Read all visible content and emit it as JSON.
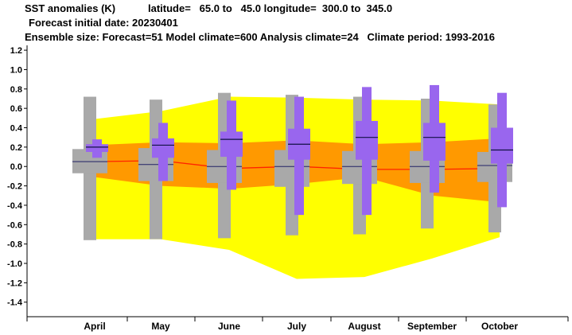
{
  "header": {
    "title": "SST anomalies (K)",
    "region": "latitude=   65.0 to   45.0 longitude=  300.0 to  345.0",
    "initial_date": "Forecast initial date: 20230401",
    "ensemble": "Ensemble size: Forecast=51 Model climate=600 Analysis climate=24   Climate period: 1993-2016"
  },
  "chart_data": {
    "type": "box",
    "categories": [
      "April",
      "May",
      "June",
      "July",
      "August",
      "September",
      "October"
    ],
    "ylim": [
      -1.55,
      1.25
    ],
    "yticks": [
      1.2,
      1.0,
      0.8,
      0.6,
      0.4,
      0.2,
      0.0,
      -0.2,
      -0.4,
      -0.6,
      -0.8,
      -1.0,
      -1.2,
      -1.4
    ],
    "ytick_labels": [
      "1.2",
      "1.0",
      "0.8",
      "0.6",
      "0.4",
      "0.2",
      "0.0",
      "-0.2",
      "-0.4",
      "-0.6",
      "-0.8",
      "-1.0",
      "-1.2",
      "-1.4"
    ],
    "grid": false,
    "climate_band_outer": {
      "color": "#ffff00",
      "upper": [
        0.49,
        0.57,
        0.72,
        0.71,
        0.69,
        0.68,
        0.64
      ],
      "lower": [
        -0.75,
        -0.75,
        -0.86,
        -1.16,
        -1.14,
        -0.95,
        -0.73
      ]
    },
    "climate_band_inner": {
      "color": "#ff9900",
      "upper": [
        0.22,
        0.25,
        0.24,
        0.27,
        0.23,
        0.25,
        0.29
      ],
      "lower": [
        -0.11,
        -0.2,
        -0.23,
        -0.18,
        -0.11,
        -0.3,
        -0.37
      ]
    },
    "climate_median": {
      "color": "#ff2200",
      "values": [
        0.05,
        0.06,
        -0.02,
        0.0,
        -0.03,
        -0.03,
        -0.02
      ]
    },
    "model_climate": {
      "color": "#a9a9a9",
      "max": [
        0.72,
        0.69,
        0.76,
        0.74,
        0.72,
        0.7,
        0.64
      ],
      "q3": [
        0.18,
        0.19,
        0.17,
        0.17,
        0.16,
        0.16,
        0.15
      ],
      "median": [
        0.05,
        0.02,
        0.0,
        0.0,
        0.0,
        0.0,
        0.01
      ],
      "q1": [
        -0.07,
        -0.15,
        -0.17,
        -0.21,
        -0.18,
        -0.17,
        -0.16
      ],
      "min": [
        -0.76,
        -0.75,
        -0.74,
        -0.71,
        -0.7,
        -0.64,
        -0.68
      ]
    },
    "forecast": {
      "color": "#9966ee",
      "max": [
        0.28,
        0.45,
        0.68,
        0.72,
        0.82,
        0.84,
        0.76
      ],
      "p75": [
        0.23,
        0.29,
        0.36,
        0.39,
        0.47,
        0.45,
        0.4
      ],
      "median": [
        0.2,
        0.22,
        0.28,
        0.23,
        0.3,
        0.3,
        0.17
      ],
      "p25": [
        0.15,
        0.09,
        0.1,
        0.07,
        0.07,
        0.06,
        0.03
      ],
      "min": [
        0.09,
        -0.15,
        -0.24,
        -0.5,
        -0.5,
        -0.27,
        -0.42
      ]
    }
  }
}
